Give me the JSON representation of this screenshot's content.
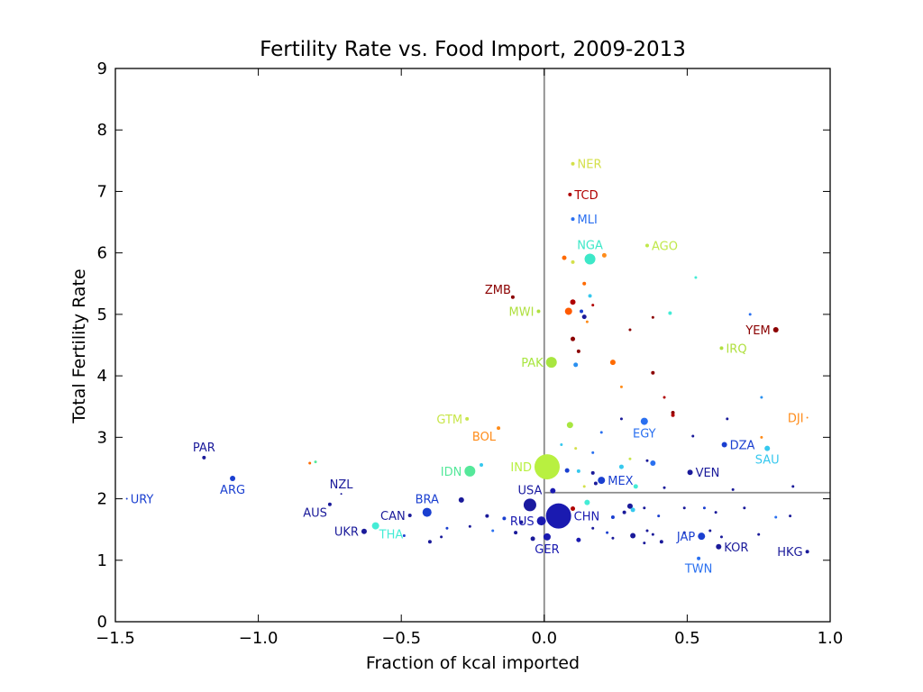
{
  "chart_data": {
    "type": "scatter",
    "title": "Fertility Rate vs. Food Import, 2009-2013",
    "xlabel": "Fraction of kcal imported",
    "ylabel": "Total Fertility Rate",
    "xlim": [
      -1.5,
      1.0
    ],
    "ylim": [
      0,
      9
    ],
    "x_ticks": [
      -1.5,
      -1.0,
      -0.5,
      0.0,
      0.5,
      1.0
    ],
    "x_tick_labels": [
      "−1.5",
      "−1.0",
      "−0.5",
      "0.0",
      "0.5",
      "1.0"
    ],
    "y_ticks": [
      0,
      1,
      2,
      3,
      4,
      5,
      6,
      7,
      8,
      9
    ],
    "y_tick_labels": [
      "0",
      "1",
      "2",
      "3",
      "4",
      "5",
      "6",
      "7",
      "8",
      "9"
    ],
    "reference_lines": {
      "vertical_x": 0.0,
      "horizontal_y": 2.1
    },
    "grid": false,
    "labeled_points": [
      {
        "code": "NER",
        "x": 0.1,
        "y": 7.45,
        "size": 2,
        "color": "#d4e04a"
      },
      {
        "code": "TCD",
        "x": 0.09,
        "y": 6.95,
        "size": 2,
        "color": "#b00000"
      },
      {
        "code": "MLI",
        "x": 0.1,
        "y": 6.55,
        "size": 2,
        "color": "#2a6ff0"
      },
      {
        "code": "NGA",
        "x": 0.16,
        "y": 5.9,
        "size": 6,
        "color": "#3de8c8"
      },
      {
        "code": "AGO",
        "x": 0.36,
        "y": 6.12,
        "size": 2,
        "color": "#c0e84a"
      },
      {
        "code": "ZMB",
        "x": -0.11,
        "y": 5.28,
        "size": 2,
        "color": "#8b0000"
      },
      {
        "code": "MWI",
        "x": -0.02,
        "y": 5.05,
        "size": 2,
        "color": "#b0e040"
      },
      {
        "code": "YEM",
        "x": 0.81,
        "y": 4.75,
        "size": 3,
        "color": "#8b0000"
      },
      {
        "code": "IRQ",
        "x": 0.62,
        "y": 4.45,
        "size": 2,
        "color": "#b0e040"
      },
      {
        "code": "PAK",
        "x": 0.025,
        "y": 4.22,
        "size": 6,
        "color": "#a8e640"
      },
      {
        "code": "GTM",
        "x": -0.27,
        "y": 3.3,
        "size": 2,
        "color": "#c8e64a"
      },
      {
        "code": "DJI",
        "x": 0.92,
        "y": 3.32,
        "size": 1,
        "color": "#ff8c1a"
      },
      {
        "code": "EGY",
        "x": 0.35,
        "y": 3.26,
        "size": 4,
        "color": "#2a70f0"
      },
      {
        "code": "BOL",
        "x": -0.16,
        "y": 3.15,
        "size": 2,
        "color": "#ff8c1a"
      },
      {
        "code": "DZA",
        "x": 0.63,
        "y": 2.88,
        "size": 3,
        "color": "#1a3fd0"
      },
      {
        "code": "SAU",
        "x": 0.78,
        "y": 2.82,
        "size": 3,
        "color": "#36c8ee"
      },
      {
        "code": "PAR",
        "x": -1.19,
        "y": 2.67,
        "size": 2,
        "color": "#1a1a9a"
      },
      {
        "code": "IDN",
        "x": -0.26,
        "y": 2.45,
        "size": 6,
        "color": "#55e89a"
      },
      {
        "code": "IND",
        "x": 0.01,
        "y": 2.52,
        "size": 14,
        "color": "#b8f040"
      },
      {
        "code": "VEN",
        "x": 0.51,
        "y": 2.43,
        "size": 3,
        "color": "#1a1a9a"
      },
      {
        "code": "ARG",
        "x": -1.09,
        "y": 2.33,
        "size": 3,
        "color": "#1a3fd0"
      },
      {
        "code": "MEX",
        "x": 0.2,
        "y": 2.3,
        "size": 4,
        "color": "#1a3fd0"
      },
      {
        "code": "NZL",
        "x": -0.71,
        "y": 2.08,
        "size": 1,
        "color": "#1a1a9a"
      },
      {
        "code": "URY",
        "x": -1.46,
        "y": 2.0,
        "size": 1,
        "color": "#1a3fd0"
      },
      {
        "code": "USA",
        "x": -0.05,
        "y": 1.9,
        "size": 7,
        "color": "#1a1aa0"
      },
      {
        "code": "AUS",
        "x": -0.75,
        "y": 1.91,
        "size": 2,
        "color": "#1a1a9a"
      },
      {
        "code": "BRA",
        "x": -0.41,
        "y": 1.78,
        "size": 5,
        "color": "#1a3fd0"
      },
      {
        "code": "CAN",
        "x": -0.47,
        "y": 1.73,
        "size": 2,
        "color": "#1a1a9a"
      },
      {
        "code": "CHN",
        "x": 0.05,
        "y": 1.72,
        "size": 14,
        "color": "#1a1ab0"
      },
      {
        "code": "RUS",
        "x": -0.01,
        "y": 1.64,
        "size": 5,
        "color": "#1a1ab0"
      },
      {
        "code": "THA",
        "x": -0.59,
        "y": 1.56,
        "size": 4,
        "color": "#44ecd6"
      },
      {
        "code": "UKR",
        "x": -0.63,
        "y": 1.47,
        "size": 3,
        "color": "#1a1a9a"
      },
      {
        "code": "JAP",
        "x": 0.55,
        "y": 1.39,
        "size": 4,
        "color": "#1a3fd0"
      },
      {
        "code": "GER",
        "x": 0.01,
        "y": 1.38,
        "size": 4,
        "color": "#1a1ab0"
      },
      {
        "code": "KOR",
        "x": 0.61,
        "y": 1.22,
        "size": 3,
        "color": "#1a1a9a"
      },
      {
        "code": "HKG",
        "x": 0.92,
        "y": 1.14,
        "size": 2,
        "color": "#1a1a9a"
      },
      {
        "code": "TWN",
        "x": 0.54,
        "y": 1.03,
        "size": 2,
        "color": "#2a70f0"
      }
    ],
    "unlabeled_points": [
      {
        "x": 0.07,
        "y": 5.92,
        "size": 2.5,
        "color": "#ff6a00"
      },
      {
        "x": 0.1,
        "y": 5.85,
        "size": 2,
        "color": "#d4e04a"
      },
      {
        "x": 0.21,
        "y": 5.96,
        "size": 2.5,
        "color": "#ff8c1a"
      },
      {
        "x": 0.14,
        "y": 5.5,
        "size": 2,
        "color": "#ff6a00"
      },
      {
        "x": 0.16,
        "y": 5.3,
        "size": 2,
        "color": "#36c8ee"
      },
      {
        "x": 0.1,
        "y": 5.2,
        "size": 3,
        "color": "#b00000"
      },
      {
        "x": 0.13,
        "y": 5.05,
        "size": 2,
        "color": "#1a3fd0"
      },
      {
        "x": 0.17,
        "y": 5.15,
        "size": 1.5,
        "color": "#b00000"
      },
      {
        "x": 0.085,
        "y": 5.05,
        "size": 4,
        "color": "#ff5a00"
      },
      {
        "x": 0.14,
        "y": 4.96,
        "size": 2.5,
        "color": "#1a1a9a"
      },
      {
        "x": 0.15,
        "y": 4.88,
        "size": 1.5,
        "color": "#ff8c1a"
      },
      {
        "x": 0.1,
        "y": 4.6,
        "size": 2.5,
        "color": "#8b0000"
      },
      {
        "x": 0.12,
        "y": 4.4,
        "size": 2,
        "color": "#8b0000"
      },
      {
        "x": 0.3,
        "y": 4.75,
        "size": 1.5,
        "color": "#8b0000"
      },
      {
        "x": 0.38,
        "y": 4.95,
        "size": 1.5,
        "color": "#8b0000"
      },
      {
        "x": 0.44,
        "y": 5.02,
        "size": 2,
        "color": "#44ecd6"
      },
      {
        "x": 0.53,
        "y": 5.6,
        "size": 1.5,
        "color": "#44ecd6"
      },
      {
        "x": 0.72,
        "y": 5.0,
        "size": 1.5,
        "color": "#2a70f0"
      },
      {
        "x": 0.11,
        "y": 4.18,
        "size": 2.5,
        "color": "#2a90f0"
      },
      {
        "x": 0.24,
        "y": 4.22,
        "size": 3,
        "color": "#ff6a00"
      },
      {
        "x": 0.38,
        "y": 4.05,
        "size": 2,
        "color": "#8b0000"
      },
      {
        "x": 0.45,
        "y": 3.4,
        "size": 2,
        "color": "#8b0000"
      },
      {
        "x": 0.45,
        "y": 3.36,
        "size": 2,
        "color": "#b00000"
      },
      {
        "x": 0.42,
        "y": 3.65,
        "size": 1.5,
        "color": "#b00000"
      },
      {
        "x": 0.27,
        "y": 3.82,
        "size": 1.5,
        "color": "#ff8c1a"
      },
      {
        "x": 0.76,
        "y": 3.65,
        "size": 1.5,
        "color": "#2a90f0"
      },
      {
        "x": 0.27,
        "y": 3.3,
        "size": 1.5,
        "color": "#1a1a9a"
      },
      {
        "x": 0.09,
        "y": 3.2,
        "size": 3.5,
        "color": "#a8e640"
      },
      {
        "x": 0.2,
        "y": 3.08,
        "size": 1.5,
        "color": "#2a70f0"
      },
      {
        "x": 0.52,
        "y": 3.02,
        "size": 1.5,
        "color": "#1a1a9a"
      },
      {
        "x": 0.64,
        "y": 3.3,
        "size": 1.5,
        "color": "#1a1a9a"
      },
      {
        "x": 0.76,
        "y": 3.0,
        "size": 1.5,
        "color": "#ff8c1a"
      },
      {
        "x": 0.06,
        "y": 2.88,
        "size": 1.5,
        "color": "#36c8ee"
      },
      {
        "x": 0.11,
        "y": 2.82,
        "size": 1.5,
        "color": "#d4e04a"
      },
      {
        "x": 0.17,
        "y": 2.75,
        "size": 1.5,
        "color": "#2a70f0"
      },
      {
        "x": 0.3,
        "y": 2.65,
        "size": 1.5,
        "color": "#c8e64a"
      },
      {
        "x": 0.36,
        "y": 2.62,
        "size": 1.5,
        "color": "#1a1a9a"
      },
      {
        "x": 0.38,
        "y": 2.58,
        "size": 3,
        "color": "#2a70f0"
      },
      {
        "x": 0.27,
        "y": 2.52,
        "size": 2.5,
        "color": "#36c8ee"
      },
      {
        "x": 0.08,
        "y": 2.46,
        "size": 2.5,
        "color": "#1a3fd0"
      },
      {
        "x": 0.12,
        "y": 2.45,
        "size": 2,
        "color": "#36c8ee"
      },
      {
        "x": 0.17,
        "y": 2.42,
        "size": 2,
        "color": "#1a1a9a"
      },
      {
        "x": -0.22,
        "y": 2.55,
        "size": 2,
        "color": "#36c8ee"
      },
      {
        "x": -0.8,
        "y": 2.6,
        "size": 1.5,
        "color": "#55e89a"
      },
      {
        "x": -0.82,
        "y": 2.58,
        "size": 1.5,
        "color": "#ff6a00"
      },
      {
        "x": 0.18,
        "y": 2.25,
        "size": 2,
        "color": "#1a1a9a"
      },
      {
        "x": 0.14,
        "y": 2.2,
        "size": 1.5,
        "color": "#d4e04a"
      },
      {
        "x": 0.32,
        "y": 2.2,
        "size": 2.5,
        "color": "#44ecd6"
      },
      {
        "x": 0.42,
        "y": 2.18,
        "size": 1.5,
        "color": "#1a1a9a"
      },
      {
        "x": 0.66,
        "y": 2.15,
        "size": 1.5,
        "color": "#1a1a9a"
      },
      {
        "x": 0.87,
        "y": 2.2,
        "size": 1.5,
        "color": "#1a1a9a"
      },
      {
        "x": 0.03,
        "y": 2.13,
        "size": 3,
        "color": "#1a1ab0"
      },
      {
        "x": -0.29,
        "y": 1.98,
        "size": 3,
        "color": "#1a1a9a"
      },
      {
        "x": -0.06,
        "y": 1.95,
        "size": 2,
        "color": "#1a3fd0"
      },
      {
        "x": 0.15,
        "y": 1.94,
        "size": 3,
        "color": "#44ecd6"
      },
      {
        "x": 0.3,
        "y": 1.88,
        "size": 3,
        "color": "#1a1a9a"
      },
      {
        "x": 0.31,
        "y": 1.82,
        "size": 2.5,
        "color": "#36c8ee"
      },
      {
        "x": 0.28,
        "y": 1.78,
        "size": 2,
        "color": "#1a1a9a"
      },
      {
        "x": 0.24,
        "y": 1.7,
        "size": 2,
        "color": "#1a3fd0"
      },
      {
        "x": 0.1,
        "y": 1.84,
        "size": 2.5,
        "color": "#b00000"
      },
      {
        "x": 0.08,
        "y": 1.78,
        "size": 2,
        "color": "#1a3fd0"
      },
      {
        "x": 0.35,
        "y": 1.85,
        "size": 1.5,
        "color": "#1a1a9a"
      },
      {
        "x": 0.4,
        "y": 1.72,
        "size": 1.5,
        "color": "#1a3fd0"
      },
      {
        "x": 0.49,
        "y": 1.85,
        "size": 1.5,
        "color": "#1a1a9a"
      },
      {
        "x": 0.56,
        "y": 1.85,
        "size": 1.5,
        "color": "#1a3fd0"
      },
      {
        "x": 0.6,
        "y": 1.78,
        "size": 1.5,
        "color": "#1a1a9a"
      },
      {
        "x": 0.7,
        "y": 1.85,
        "size": 1.5,
        "color": "#1a1a9a"
      },
      {
        "x": 0.81,
        "y": 1.7,
        "size": 1.5,
        "color": "#2a70f0"
      },
      {
        "x": 0.86,
        "y": 1.72,
        "size": 1.5,
        "color": "#1a1a9a"
      },
      {
        "x": -0.2,
        "y": 1.72,
        "size": 2,
        "color": "#1a1a9a"
      },
      {
        "x": -0.14,
        "y": 1.68,
        "size": 2,
        "color": "#1a3fd0"
      },
      {
        "x": -0.08,
        "y": 1.62,
        "size": 2,
        "color": "#1a1a9a"
      },
      {
        "x": -0.34,
        "y": 1.52,
        "size": 1.5,
        "color": "#1a3fd0"
      },
      {
        "x": -0.26,
        "y": 1.55,
        "size": 1.5,
        "color": "#1a1a9a"
      },
      {
        "x": -0.18,
        "y": 1.48,
        "size": 1.5,
        "color": "#2a70f0"
      },
      {
        "x": -0.1,
        "y": 1.45,
        "size": 2,
        "color": "#1a1a9a"
      },
      {
        "x": -0.04,
        "y": 1.35,
        "size": 2.5,
        "color": "#1a1a9a"
      },
      {
        "x": 0.12,
        "y": 1.33,
        "size": 2.5,
        "color": "#1a1ab0"
      },
      {
        "x": 0.17,
        "y": 1.52,
        "size": 1.5,
        "color": "#1a1a9a"
      },
      {
        "x": 0.22,
        "y": 1.45,
        "size": 1.5,
        "color": "#1a3fd0"
      },
      {
        "x": 0.31,
        "y": 1.4,
        "size": 3,
        "color": "#1a1a9a"
      },
      {
        "x": 0.36,
        "y": 1.48,
        "size": 1.5,
        "color": "#1a1a9a"
      },
      {
        "x": 0.38,
        "y": 1.42,
        "size": 1.5,
        "color": "#1a1a9a"
      },
      {
        "x": 0.41,
        "y": 1.3,
        "size": 2,
        "color": "#1a1a9a"
      },
      {
        "x": 0.49,
        "y": 1.45,
        "size": 1.5,
        "color": "#1a1a9a"
      },
      {
        "x": 0.58,
        "y": 1.48,
        "size": 1.5,
        "color": "#1a1a9a"
      },
      {
        "x": 0.62,
        "y": 1.38,
        "size": 1.5,
        "color": "#1a1a9a"
      },
      {
        "x": 0.75,
        "y": 1.42,
        "size": 1.5,
        "color": "#1a1a9a"
      },
      {
        "x": 0.35,
        "y": 1.28,
        "size": 1.5,
        "color": "#1a1a9a"
      },
      {
        "x": 0.24,
        "y": 1.36,
        "size": 1.5,
        "color": "#1a1a9a"
      },
      {
        "x": -0.49,
        "y": 1.4,
        "size": 1.5,
        "color": "#1a3fd0"
      },
      {
        "x": -0.36,
        "y": 1.38,
        "size": 1.5,
        "color": "#1a1a9a"
      },
      {
        "x": -0.4,
        "y": 1.3,
        "size": 2,
        "color": "#1a1a9a"
      }
    ]
  }
}
